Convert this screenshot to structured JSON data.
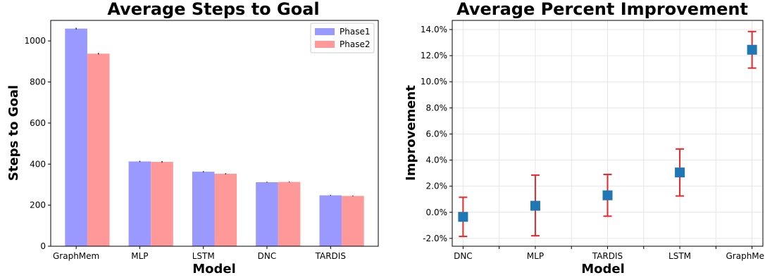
{
  "chart_data": [
    {
      "type": "bar",
      "title": "Average Steps to Goal",
      "xlabel": "Model",
      "ylabel": "Steps to Goal",
      "categories": [
        "GraphMem",
        "MLP",
        "LSTM",
        "DNC",
        "TARDIS"
      ],
      "series": [
        {
          "name": "Phase1",
          "color": "#9999ff",
          "values": [
            1060,
            413,
            363,
            312,
            248
          ],
          "errors": [
            4,
            3,
            3,
            2,
            2
          ]
        },
        {
          "name": "Phase2",
          "color": "#ff9999",
          "values": [
            938,
            411,
            353,
            313,
            245
          ],
          "errors": [
            4,
            4,
            3,
            2,
            2
          ]
        }
      ],
      "ylim": [
        0,
        1100
      ],
      "yticks": [
        0,
        200,
        400,
        600,
        800,
        1000
      ],
      "grid": false,
      "legend_position": "top-right"
    },
    {
      "type": "scatter",
      "title": "Average Percent Improvement",
      "xlabel": "Model",
      "ylabel": "Improvement",
      "categories": [
        "DNC",
        "MLP",
        "TARDIS",
        "LSTM",
        "GraphMem"
      ],
      "values": [
        -0.35,
        0.5,
        1.3,
        3.05,
        12.45
      ],
      "error_low": [
        -1.85,
        -1.8,
        -0.3,
        1.25,
        11.05
      ],
      "error_high": [
        1.15,
        2.85,
        2.9,
        4.85,
        13.85
      ],
      "ylim": [
        -2.6,
        14.7
      ],
      "yticks": [
        -2,
        0,
        2,
        4,
        6,
        8,
        10,
        12,
        14
      ],
      "ytick_labels": [
        "-2.0%",
        "0.0%",
        "2.0%",
        "4.0%",
        "6.0%",
        "8.0%",
        "10.0%",
        "12.0%",
        "14.0%"
      ],
      "grid": true,
      "marker_color": "#1f77b4",
      "error_color": "#e8272b"
    }
  ]
}
